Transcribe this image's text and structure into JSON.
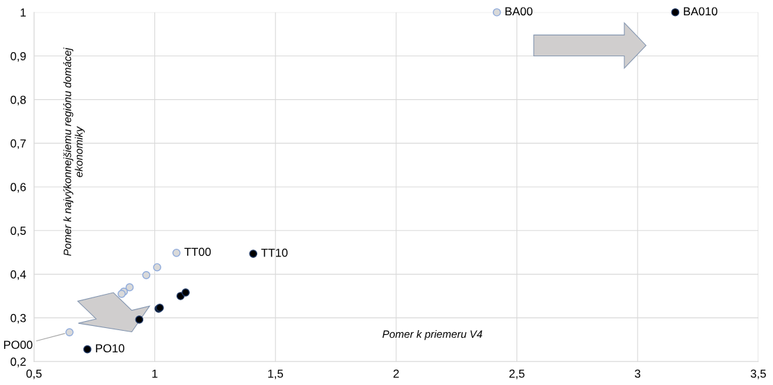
{
  "chart_data": {
    "type": "scatter",
    "xlabel": "Pomer k priemeru V4",
    "ylabel": "Pomer k najvýkonnejšiemu regiónu domácej\nekonomiky",
    "series": [
      {
        "color": "#d9d9d9",
        "x": [
          2.417,
          1.09,
          1.01,
          0.965,
          0.896,
          0.863,
          0.872,
          0.647
        ],
        "values": [
          1,
          0.449,
          0.416,
          0.398,
          0.37,
          0.355,
          0.36,
          0.267
        ]
      },
      {
        "color": "#000000",
        "x": [
          3.156,
          1.408,
          1.128,
          1.107,
          1.021,
          1.016,
          0.936,
          0.721
        ],
        "values": [
          1,
          0.447,
          0.358,
          0.35,
          0.323,
          0.321,
          0.296,
          0.228
        ]
      }
    ],
    "annotations": [
      {
        "text": "BA00",
        "x": 2.417,
        "y": 1
      },
      {
        "text": "BA010",
        "x": 3.156,
        "y": 1
      },
      {
        "text": "TT00",
        "x": 1.09,
        "y": 0.449
      },
      {
        "text": "TT10",
        "x": 1.408,
        "y": 0.447
      },
      {
        "text": "PO00",
        "x": 0.647,
        "y": 0.267
      },
      {
        "text": "PO10",
        "x": 0.721,
        "y": 0.228
      }
    ],
    "xlim": [
      0.5,
      3.5
    ],
    "xticks": [
      {
        "value": 0.5,
        "label": "0,5"
      },
      1,
      {
        "value": 1.5,
        "label": "1,5"
      },
      2,
      {
        "value": 2.5,
        "label": "2,5"
      },
      3,
      {
        "value": 3.5,
        "label": "3,5"
      }
    ],
    "ylim": [
      0.2,
      1
    ],
    "yticks": [
      {
        "value": 0.2,
        "label": "0,2"
      },
      {
        "value": 0.3,
        "label": "0,3"
      },
      {
        "value": 0.4,
        "label": "0,4"
      },
      {
        "value": 0.5,
        "label": "0,5"
      },
      {
        "value": 0.6,
        "label": "0,6"
      },
      {
        "value": 0.7,
        "label": "0,7"
      },
      {
        "value": 0.8,
        "label": "0,8"
      },
      {
        "value": 0.9,
        "label": "0,9"
      },
      1
    ],
    "grid": true,
    "marker": "circle"
  }
}
